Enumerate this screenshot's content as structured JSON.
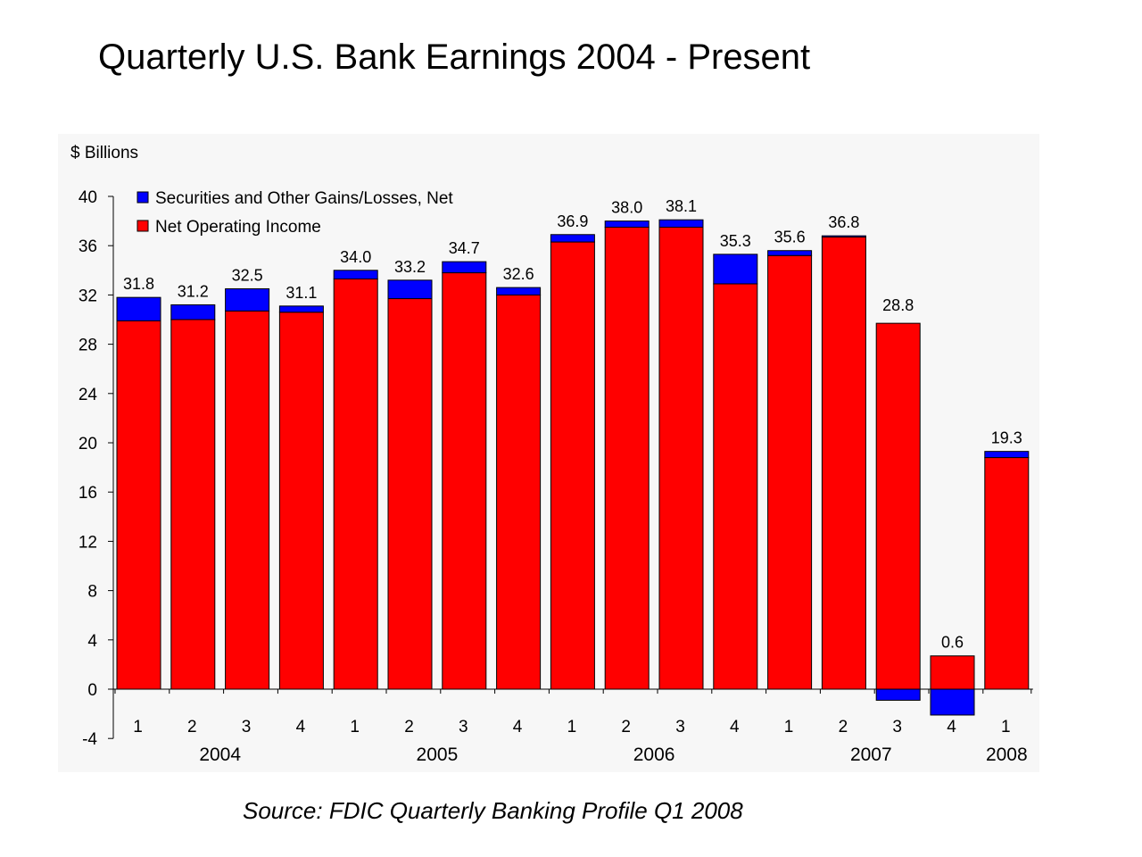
{
  "chart_data": {
    "type": "bar",
    "stacked": true,
    "title": "Quarterly U.S. Bank Earnings 2004 - Present",
    "ylabel": "$ Billions",
    "source": "Source:  FDIC Quarterly Banking Profile Q1 2008",
    "ylim": [
      -4,
      40
    ],
    "yticks": [
      -4,
      0,
      4,
      8,
      12,
      16,
      20,
      24,
      28,
      32,
      36,
      40
    ],
    "categories": [
      "1",
      "2",
      "3",
      "4",
      "1",
      "2",
      "3",
      "4",
      "1",
      "2",
      "3",
      "4",
      "1",
      "2",
      "3",
      "4",
      "1"
    ],
    "years": [
      {
        "label": "2004",
        "quarters": 4
      },
      {
        "label": "2005",
        "quarters": 4
      },
      {
        "label": "2006",
        "quarters": 4
      },
      {
        "label": "2007",
        "quarters": 4
      },
      {
        "label": "2008",
        "quarters": 1
      }
    ],
    "legend_position": "top-left",
    "series": [
      {
        "name": "Securities and Other Gains/Losses, Net",
        "color": "#0000FF",
        "values": [
          1.9,
          1.2,
          1.8,
          0.5,
          0.7,
          1.5,
          0.9,
          0.6,
          0.6,
          0.5,
          0.6,
          2.4,
          0.4,
          0.1,
          -0.9,
          -2.1,
          0.5
        ]
      },
      {
        "name": "Net Operating Income",
        "color": "#FF0000",
        "values": [
          29.9,
          30.0,
          30.7,
          30.6,
          33.3,
          31.7,
          33.8,
          32.0,
          36.3,
          37.5,
          37.5,
          32.9,
          35.2,
          36.7,
          29.7,
          2.7,
          18.8
        ]
      }
    ],
    "totals": [
      "31.8",
      "31.2",
      "32.5",
      "31.1",
      "34.0",
      "33.2",
      "34.7",
      "32.6",
      "36.9",
      "38.0",
      "38.1",
      "35.3",
      "35.6",
      "36.8",
      "28.8",
      "0.6",
      "19.3"
    ]
  }
}
